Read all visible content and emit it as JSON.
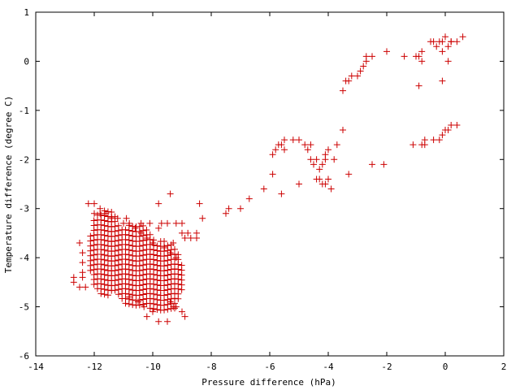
{
  "chart_data": {
    "type": "scatter",
    "title": "",
    "xlabel": "Pressure difference (hPa)",
    "ylabel": "Temperature difference (degree C)",
    "xlim": [
      -14,
      2
    ],
    "ylim": [
      -6,
      1
    ],
    "xticks": [
      -14,
      -12,
      -10,
      -8,
      -6,
      -4,
      -2,
      0,
      2
    ],
    "yticks": [
      -6,
      -5,
      -4,
      -3,
      -2,
      -1,
      0,
      1
    ],
    "grid": false,
    "legend": "none",
    "marker": "+",
    "color": "#cc0000",
    "series": [
      {
        "points": [
          [
            0.6,
            0.5
          ],
          [
            0.4,
            0.4
          ],
          [
            0.2,
            0.4
          ],
          [
            0.1,
            0.3
          ],
          [
            0.2,
            0.4
          ],
          [
            0.0,
            0.5
          ],
          [
            -0.1,
            0.4
          ],
          [
            -0.2,
            0.4
          ],
          [
            -0.1,
            0.2
          ],
          [
            0.1,
            0.0
          ],
          [
            -0.1,
            -0.4
          ],
          [
            -0.3,
            0.3
          ],
          [
            -0.4,
            0.4
          ],
          [
            -0.5,
            0.4
          ],
          [
            -0.8,
            0.2
          ],
          [
            -0.9,
            0.1
          ],
          [
            -0.8,
            0.0
          ],
          [
            -0.9,
            -0.5
          ],
          [
            -1.0,
            0.1
          ],
          [
            -1.4,
            0.1
          ],
          [
            -2.0,
            0.2
          ],
          [
            -2.5,
            0.1
          ],
          [
            -2.7,
            0.1
          ],
          [
            -2.7,
            0.0
          ],
          [
            -2.8,
            -0.1
          ],
          [
            -2.9,
            -0.2
          ],
          [
            -3.0,
            -0.3
          ],
          [
            -3.2,
            -0.3
          ],
          [
            -3.3,
            -0.4
          ],
          [
            -3.4,
            -0.4
          ],
          [
            -3.5,
            -0.6
          ],
          [
            0.4,
            -1.3
          ],
          [
            0.2,
            -1.3
          ],
          [
            0.1,
            -1.4
          ],
          [
            0.0,
            -1.4
          ],
          [
            -0.1,
            -1.5
          ],
          [
            -0.2,
            -1.6
          ],
          [
            -0.4,
            -1.6
          ],
          [
            -0.7,
            -1.7
          ],
          [
            -0.8,
            -1.7
          ],
          [
            -0.7,
            -1.6
          ],
          [
            -1.1,
            -1.7
          ],
          [
            -2.1,
            -2.1
          ],
          [
            -2.5,
            -2.1
          ],
          [
            -3.3,
            -2.3
          ],
          [
            -3.5,
            -1.4
          ],
          [
            -3.7,
            -1.7
          ],
          [
            -3.8,
            -2.0
          ],
          [
            -4.0,
            -1.8
          ],
          [
            -4.1,
            -1.9
          ],
          [
            -4.1,
            -2.0
          ],
          [
            -4.2,
            -2.1
          ],
          [
            -4.3,
            -2.2
          ],
          [
            -4.4,
            -2.0
          ],
          [
            -4.5,
            -2.1
          ],
          [
            -4.6,
            -2.0
          ],
          [
            -4.7,
            -1.8
          ],
          [
            -4.6,
            -1.7
          ],
          [
            -4.8,
            -1.7
          ],
          [
            -5.0,
            -1.6
          ],
          [
            -5.2,
            -1.6
          ],
          [
            -5.0,
            -2.5
          ],
          [
            -4.0,
            -2.4
          ],
          [
            -4.1,
            -2.5
          ],
          [
            -4.3,
            -2.4
          ],
          [
            -4.2,
            -2.5
          ],
          [
            -4.4,
            -2.4
          ],
          [
            -3.9,
            -2.6
          ],
          [
            -5.5,
            -1.6
          ],
          [
            -5.5,
            -1.8
          ],
          [
            -5.6,
            -1.7
          ],
          [
            -5.7,
            -1.7
          ],
          [
            -5.8,
            -1.8
          ],
          [
            -5.9,
            -1.9
          ],
          [
            -5.9,
            -2.3
          ],
          [
            -5.6,
            -2.7
          ],
          [
            -6.2,
            -2.6
          ],
          [
            -6.7,
            -2.8
          ],
          [
            -7.0,
            -3.0
          ],
          [
            -7.4,
            -3.0
          ],
          [
            -7.5,
            -3.1
          ],
          [
            -8.3,
            -3.2
          ],
          [
            -8.4,
            -2.9
          ],
          [
            -12.7,
            -4.4
          ],
          [
            -12.7,
            -4.5
          ],
          [
            -12.5,
            -4.6
          ],
          [
            -12.4,
            -4.4
          ],
          [
            -12.3,
            -4.6
          ],
          [
            -12.5,
            -3.7
          ],
          [
            -12.4,
            -3.9
          ],
          [
            -12.4,
            -4.1
          ],
          [
            -12.4,
            -4.3
          ],
          [
            -12.2,
            -2.9
          ],
          [
            -12.0,
            -2.9
          ],
          [
            -11.8,
            -3.0
          ],
          [
            -9.8,
            -2.9
          ],
          [
            -9.4,
            -2.7
          ],
          [
            -9.7,
            -3.3
          ],
          [
            -9.5,
            -3.3
          ],
          [
            -9.8,
            -3.4
          ],
          [
            -9.2,
            -3.3
          ],
          [
            -9.0,
            -3.3
          ],
          [
            -9.0,
            -3.5
          ],
          [
            -8.8,
            -3.5
          ],
          [
            -8.7,
            -3.6
          ],
          [
            -8.5,
            -3.5
          ],
          [
            -8.5,
            -3.6
          ],
          [
            -8.9,
            -3.6
          ],
          [
            -9.3,
            -3.7
          ],
          [
            -9.6,
            -3.8
          ],
          [
            -9.4,
            -3.9
          ],
          [
            -9.2,
            -4.0
          ],
          [
            -9.8,
            -5.3
          ],
          [
            -9.5,
            -5.3
          ],
          [
            -10.2,
            -5.2
          ],
          [
            -8.9,
            -5.2
          ],
          [
            -9.0,
            -5.1
          ],
          [
            -9.2,
            -5.0
          ],
          [
            -9.4,
            -4.9
          ],
          [
            -9.3,
            -5.0
          ],
          [
            -10.0,
            -5.1
          ],
          [
            -10.3,
            -5.0
          ],
          [
            -10.5,
            -4.9
          ],
          [
            -10.8,
            -4.8
          ],
          [
            -12.0,
            -3.1
          ],
          [
            -11.8,
            -3.1
          ],
          [
            -11.6,
            -3.1
          ],
          [
            -11.4,
            -3.2
          ],
          [
            -11.2,
            -3.2
          ],
          [
            -11.0,
            -3.3
          ],
          [
            -10.8,
            -3.3
          ],
          [
            -10.6,
            -3.4
          ],
          [
            -10.4,
            -3.5
          ],
          [
            -10.2,
            -3.6
          ],
          [
            -10.0,
            -3.7
          ],
          [
            -10.1,
            -3.3
          ],
          [
            -10.4,
            -3.3
          ],
          [
            -10.9,
            -3.2
          ]
        ]
      }
    ]
  }
}
